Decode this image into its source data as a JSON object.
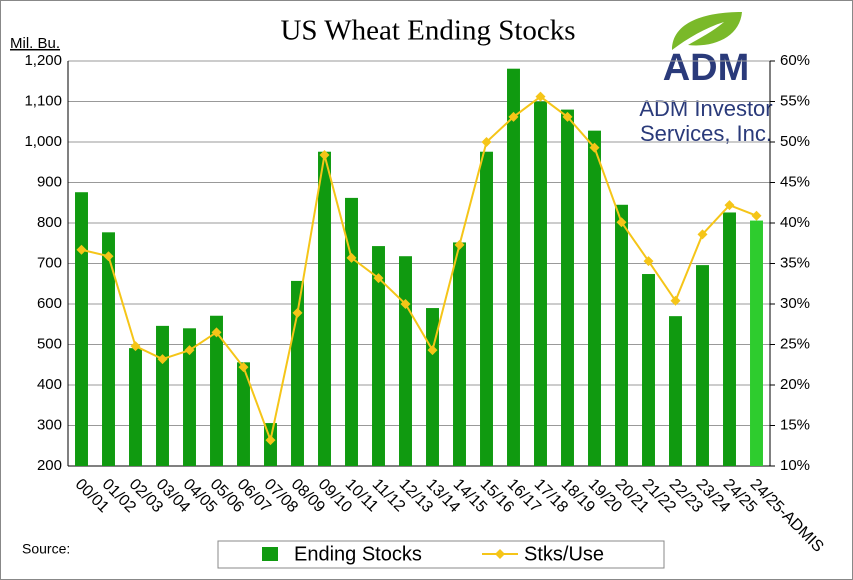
{
  "chart_data": {
    "type": "bar_line",
    "title": "US Wheat Ending Stocks",
    "y_label": "Mil. Bu.",
    "source": "Source:",
    "logo": {
      "brand": "ADM",
      "line1": "ADM Investor",
      "line2": "Services, Inc."
    },
    "categories": [
      "00/01",
      "01/02",
      "02/03",
      "03/04",
      "04/05",
      "05/06",
      "06/07",
      "07/08",
      "08/09",
      "09/10",
      "10/11",
      "11/12",
      "12/13",
      "13/14",
      "14/15",
      "15/16",
      "16/17",
      "17/18",
      "18/19",
      "19/20",
      "20/21",
      "21/22",
      "22/23",
      "23/24",
      "24/25",
      "24/25-ADMIS"
    ],
    "series": [
      {
        "name": "Ending Stocks",
        "color": "#109a10",
        "last_color": "#2ecc2e",
        "values": [
          876,
          777,
          491,
          546,
          540,
          571,
          456,
          306,
          657,
          976,
          862,
          743,
          718,
          590,
          752,
          976,
          1181,
          1100,
          1080,
          1028,
          845,
          674,
          570,
          696,
          826,
          806
        ]
      },
      {
        "name": "Stks/Use",
        "color": "#f5c518",
        "axis": "y2",
        "values": [
          36.7,
          35.9,
          24.8,
          23.2,
          24.3,
          26.5,
          22.2,
          13.2,
          28.9,
          48.4,
          35.7,
          33.2,
          30.0,
          24.3,
          37.3,
          50.0,
          53.1,
          55.6,
          53.1,
          49.3,
          40.1,
          35.3,
          30.4,
          38.6,
          42.2,
          40.9
        ]
      }
    ],
    "ylim": [
      200,
      1200
    ],
    "yticks": [
      200,
      300,
      400,
      500,
      600,
      700,
      800,
      900,
      {
        "value": 1000,
        "label": "1,000"
      },
      {
        "value": 1100,
        "label": "1,100"
      },
      {
        "value": 1200,
        "label": "1,200"
      }
    ],
    "y2lim": [
      10,
      60
    ],
    "y2ticks": [
      {
        "value": 10,
        "label": "10%"
      },
      {
        "value": 15,
        "label": "15%"
      },
      {
        "value": 20,
        "label": "20%"
      },
      {
        "value": 25,
        "label": "25%"
      },
      {
        "value": 30,
        "label": "30%"
      },
      {
        "value": 35,
        "label": "35%"
      },
      {
        "value": 40,
        "label": "40%"
      },
      {
        "value": 45,
        "label": "45%"
      },
      {
        "value": 50,
        "label": "50%"
      },
      {
        "value": 55,
        "label": "55%"
      },
      {
        "value": 60,
        "label": "60%"
      }
    ],
    "grid": true
  }
}
